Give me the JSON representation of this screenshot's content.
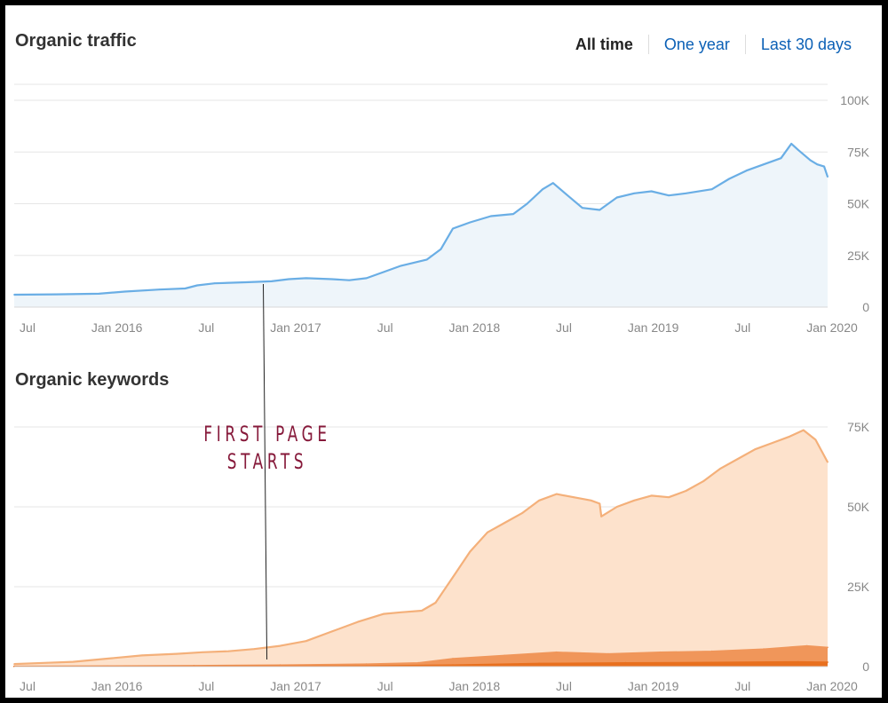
{
  "traffic": {
    "title": "Organic traffic",
    "tabs": [
      {
        "label": "All time",
        "active": true
      },
      {
        "label": "One year",
        "active": false
      },
      {
        "label": "Last 30 days",
        "active": false
      }
    ]
  },
  "keywords": {
    "title": "Organic keywords"
  },
  "annotation": {
    "line1": "FIRST PAGE",
    "line2": "STARTS"
  },
  "colors": {
    "traffic_line": "#6aaee5",
    "traffic_fill": "#eef5fa",
    "keywords_total_line": "#f4b07a",
    "keywords_total_fill": "#fde2cc",
    "keywords_mid": "#f0965a",
    "keywords_top": "#e8701f",
    "annotation_text": "#86193a"
  },
  "chart_data": [
    {
      "type": "area",
      "title": "Organic traffic",
      "x_ticks": [
        "Jul",
        "Jan 2016",
        "Jul",
        "Jan 2017",
        "Jul",
        "Jan 2018",
        "Jul",
        "Jan 2019",
        "Jul",
        "Jan 2020"
      ],
      "y_ticks": [
        "100K",
        "75K",
        "50K",
        "25K",
        "0"
      ],
      "ylim": [
        0,
        100000
      ],
      "xlim": [
        2015.46,
        2020.17
      ],
      "grid": true,
      "series": [
        {
          "x": [
            2015.46,
            2015.7,
            2015.95,
            2016.1,
            2016.3,
            2016.45,
            2016.52,
            2016.62,
            2016.8,
            2016.95,
            2017.05,
            2017.15,
            2017.3,
            2017.4,
            2017.5,
            2017.6,
            2017.7,
            2017.85,
            2017.93,
            2018.0,
            2018.1,
            2018.22,
            2018.35,
            2018.43,
            2018.52,
            2018.58,
            2018.65,
            2018.75,
            2018.85,
            2018.95,
            2019.05,
            2019.15,
            2019.25,
            2019.35,
            2019.5,
            2019.6,
            2019.7,
            2019.8,
            2019.9,
            2019.96,
            2020.0,
            2020.07,
            2020.11,
            2020.15,
            2020.17
          ],
          "values": [
            6000,
            6200,
            6500,
            7500,
            8500,
            9000,
            10500,
            11500,
            12000,
            12500,
            13500,
            14000,
            13500,
            13000,
            14000,
            17000,
            20000,
            23000,
            28000,
            38000,
            41000,
            44000,
            45000,
            50000,
            57000,
            60000,
            55000,
            48000,
            47000,
            53000,
            55000,
            56000,
            54000,
            55000,
            57000,
            62000,
            66000,
            69000,
            72000,
            79000,
            76000,
            71000,
            69000,
            68000,
            63000
          ]
        }
      ]
    },
    {
      "type": "area",
      "title": "Organic keywords",
      "x_ticks": [
        "Jul",
        "Jan 2016",
        "Jul",
        "Jan 2017",
        "Jul",
        "Jan 2018",
        "Jul",
        "Jan 2019",
        "Jul",
        "Jan 2020"
      ],
      "y_ticks": [
        "75K",
        "50K",
        "25K",
        "0"
      ],
      "ylim": [
        0,
        75000
      ],
      "xlim": [
        2015.46,
        2020.17
      ],
      "grid": true,
      "series": [
        {
          "x": [
            2015.46,
            2015.65,
            2015.8,
            2016.0,
            2016.2,
            2016.4,
            2016.55,
            2016.7,
            2016.85,
            2017.0,
            2017.15,
            2017.3,
            2017.45,
            2017.6,
            2017.7,
            2017.82,
            2017.9,
            2018.0,
            2018.1,
            2018.2,
            2018.3,
            2018.4,
            2018.5,
            2018.6,
            2018.7,
            2018.8,
            2018.85,
            2018.86,
            2018.95,
            2019.05,
            2019.15,
            2019.25,
            2019.35,
            2019.45,
            2019.55,
            2019.65,
            2019.75,
            2019.85,
            2019.95,
            2020.03,
            2020.1,
            2020.17
          ],
          "values": [
            800,
            1200,
            1500,
            2500,
            3500,
            4000,
            4500,
            4800,
            5500,
            6500,
            8000,
            11000,
            14000,
            16500,
            17000,
            17500,
            20000,
            28000,
            36000,
            42000,
            45000,
            48000,
            52000,
            54000,
            53000,
            52000,
            51000,
            47000,
            50000,
            52000,
            53500,
            53000,
            55000,
            58000,
            62000,
            65000,
            68000,
            70000,
            72000,
            74000,
            71000,
            64000
          ]
        },
        {
          "x": [
            2015.46,
            2016.0,
            2016.5,
            2017.0,
            2017.5,
            2017.8,
            2018.0,
            2018.3,
            2018.6,
            2018.9,
            2019.2,
            2019.5,
            2019.8,
            2020.05,
            2020.17
          ],
          "values": [
            100,
            200,
            300,
            500,
            800,
            1200,
            2500,
            3500,
            4500,
            4000,
            4500,
            4800,
            5500,
            6500,
            6000
          ]
        },
        {
          "x": [
            2015.46,
            2016.5,
            2017.5,
            2018.0,
            2018.5,
            2019.0,
            2019.5,
            2020.0,
            2020.17
          ],
          "values": [
            50,
            100,
            200,
            500,
            1000,
            1200,
            1300,
            1500,
            1400
          ]
        }
      ]
    }
  ]
}
